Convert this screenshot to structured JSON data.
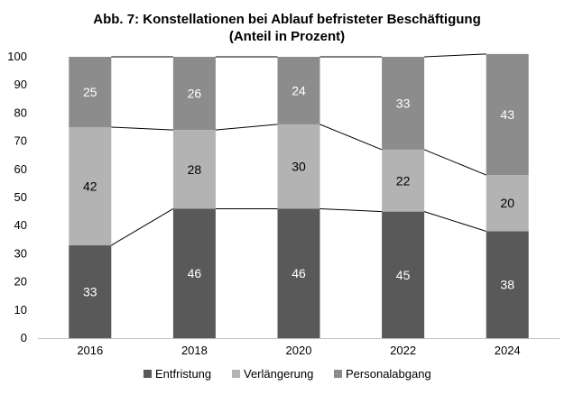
{
  "chart_data": {
    "type": "bar",
    "stacked": true,
    "title": "Abb. 7: Konstellationen bei Ablauf befristeter Beschäftigung",
    "subtitle": "(Anteil in Prozent)",
    "categories": [
      "2016",
      "2018",
      "2020",
      "2022",
      "2024"
    ],
    "series": [
      {
        "name": "Entfristung",
        "values": [
          33,
          46,
          46,
          45,
          38
        ],
        "color": "#595959",
        "label_color": "#ffffff"
      },
      {
        "name": "Verlängerung",
        "values": [
          42,
          28,
          30,
          22,
          20
        ],
        "color": "#b3b3b3",
        "label_color": "#000000"
      },
      {
        "name": "Personalabgang",
        "values": [
          25,
          26,
          24,
          33,
          43
        ],
        "color": "#8c8c8c",
        "label_color": "#ffffff"
      }
    ],
    "ylim": [
      0,
      100
    ],
    "yticks": [
      0,
      10,
      20,
      30,
      40,
      50,
      60,
      70,
      80,
      90,
      100
    ],
    "grid": false,
    "connector_lines": true,
    "legend_position": "bottom"
  }
}
